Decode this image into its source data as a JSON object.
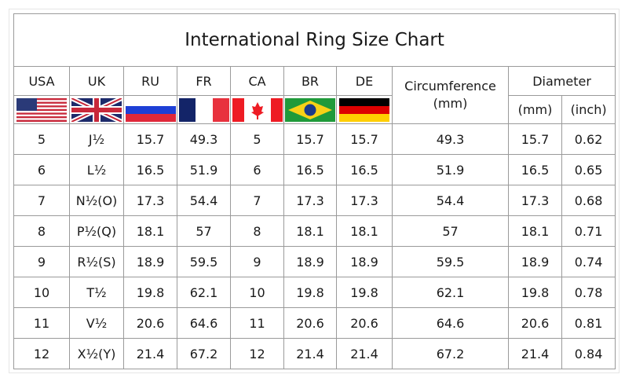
{
  "title": "International Ring Size Chart",
  "headers": {
    "usa": "USA",
    "uk": "UK",
    "ru": "RU",
    "fr": "FR",
    "ca": "CA",
    "br": "BR",
    "de": "DE",
    "circumference": "Circumference\n(mm)",
    "diameter": "Diameter",
    "diameter_mm": "(mm)",
    "diameter_inch": "(inch)"
  },
  "flags": [
    "usa-flag",
    "uk-flag",
    "russia-flag",
    "france-flag",
    "canada-flag",
    "brazil-flag",
    "germany-flag"
  ],
  "rows": [
    [
      "5",
      "J½",
      "15.7",
      "49.3",
      "5",
      "15.7",
      "15.7",
      "49.3",
      "15.7",
      "0.62"
    ],
    [
      "6",
      "L½",
      "16.5",
      "51.9",
      "6",
      "16.5",
      "16.5",
      "51.9",
      "16.5",
      "0.65"
    ],
    [
      "7",
      "N½(O)",
      "17.3",
      "54.4",
      "7",
      "17.3",
      "17.3",
      "54.4",
      "17.3",
      "0.68"
    ],
    [
      "8",
      "P½(Q)",
      "18.1",
      "57",
      "8",
      "18.1",
      "18.1",
      "57",
      "18.1",
      "0.71"
    ],
    [
      "9",
      "R½(S)",
      "18.9",
      "59.5",
      "9",
      "18.9",
      "18.9",
      "59.5",
      "18.9",
      "0.74"
    ],
    [
      "10",
      "T½",
      "19.8",
      "62.1",
      "10",
      "19.8",
      "19.8",
      "62.1",
      "19.8",
      "0.78"
    ],
    [
      "11",
      "V½",
      "20.6",
      "64.6",
      "11",
      "20.6",
      "20.6",
      "64.6",
      "20.6",
      "0.81"
    ],
    [
      "12",
      "X½(Y)",
      "21.4",
      "67.2",
      "12",
      "21.4",
      "21.4",
      "67.2",
      "21.4",
      "0.84"
    ]
  ]
}
